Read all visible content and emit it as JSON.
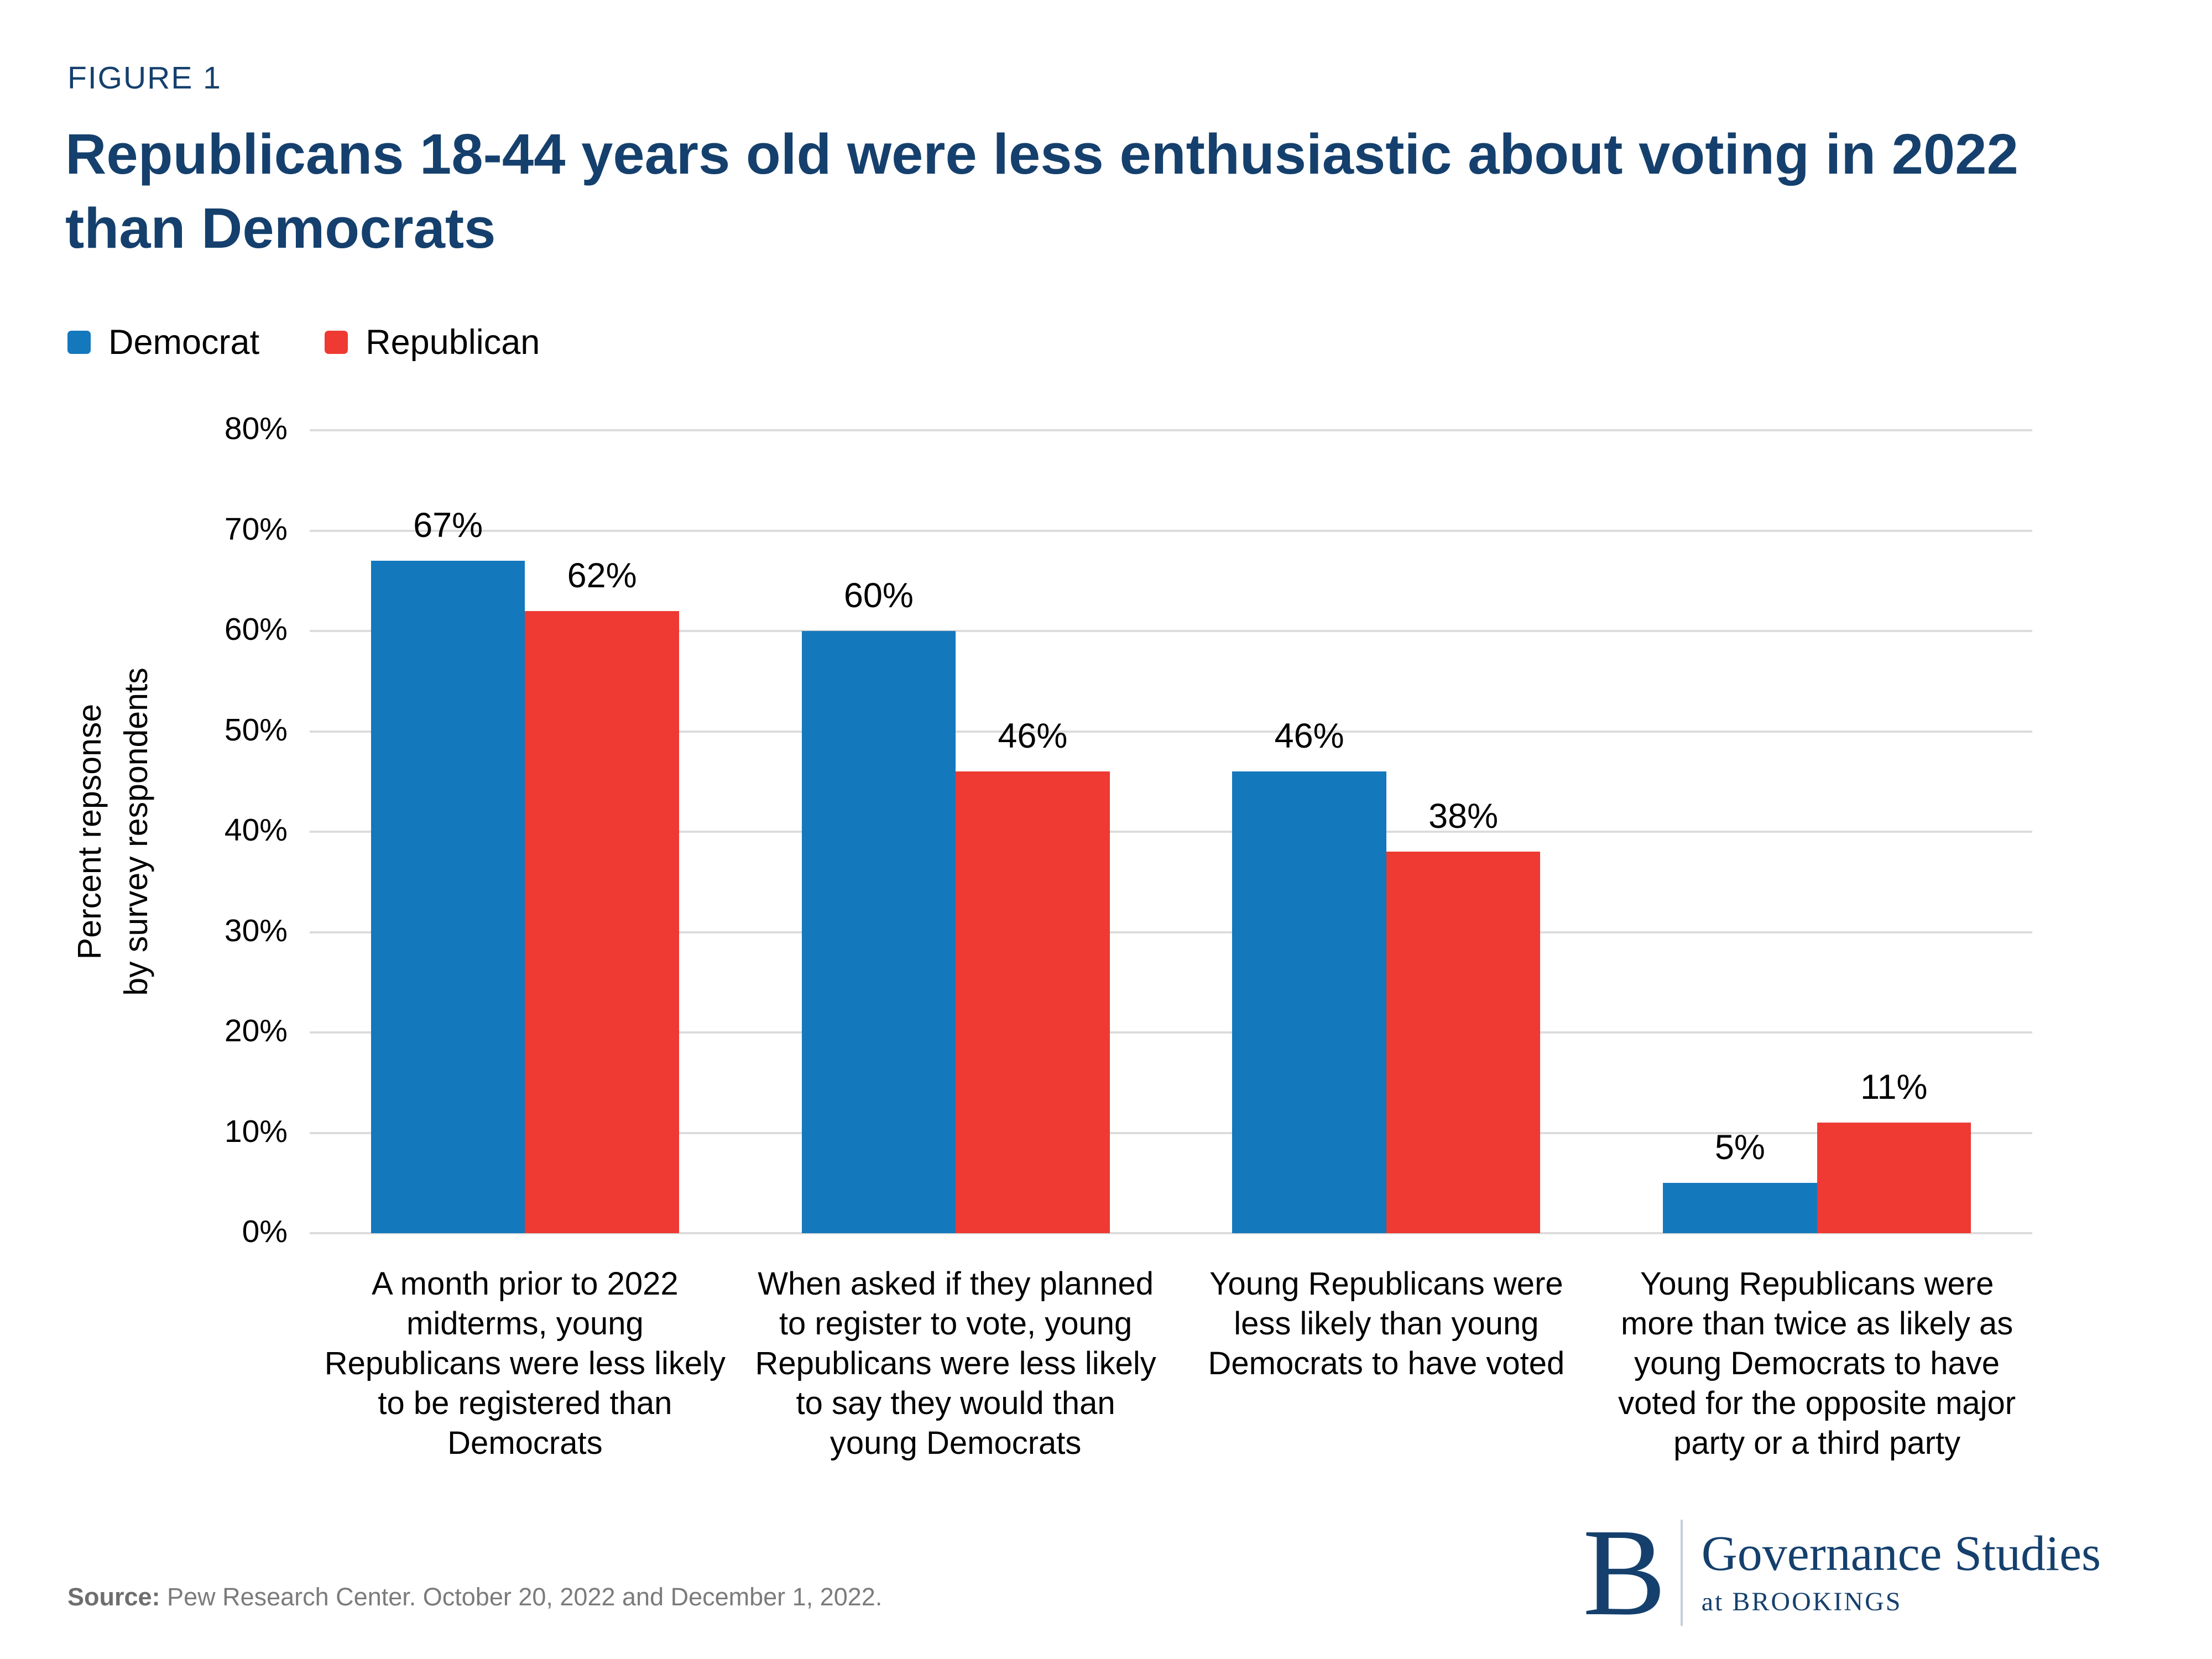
{
  "figure_label": "FIGURE 1",
  "title": "Republicans 18-44 years old were less enthusiastic about voting in 2022 than Democrats",
  "colors": {
    "navy": "#15406d",
    "democrat_blue": "#1478bd",
    "republican_red": "#ee3a33",
    "gridline_gray": "#dcdcdc",
    "source_gray": "#7b7b7b"
  },
  "legend": [
    {
      "label": "Democrat",
      "color": "#1478bd"
    },
    {
      "label": "Republican",
      "color": "#ee3a33"
    }
  ],
  "chart_data": {
    "type": "bar",
    "title": "Republicans 18-44 years old were less enthusiastic about voting in 2022 than Democrats",
    "xlabel": "",
    "ylabel": "Percent repsonse\nby survey respondents",
    "ylim": [
      0,
      80
    ],
    "ytick_step": 10,
    "ytick_suffix": "%",
    "grid": true,
    "legend_position": "top-left",
    "categories": [
      "A month prior to 2022 midterms, young Republicans were less likely to be registered than Democrats",
      "When asked if they planned to register to vote, young Republicans were less likely to say they would than young Democrats",
      "Young Republicans were less likely than young Democrats to have voted",
      "Young Republicans were more than twice as likely as young Democrats to have voted for the opposite major party or a third party"
    ],
    "series": [
      {
        "name": "Democrat",
        "color": "#1478bd",
        "values": [
          67,
          60,
          46,
          5
        ]
      },
      {
        "name": "Republican",
        "color": "#ee3a33",
        "values": [
          62,
          46,
          38,
          11
        ]
      }
    ],
    "value_label_suffix": "%"
  },
  "source": {
    "label": "Source:",
    "text": " Pew Research Center. October 20, 2022 and December 1, 2022."
  },
  "logo": {
    "monogram": "B",
    "org": "Governance Studies",
    "sub": "at BROOKINGS"
  }
}
